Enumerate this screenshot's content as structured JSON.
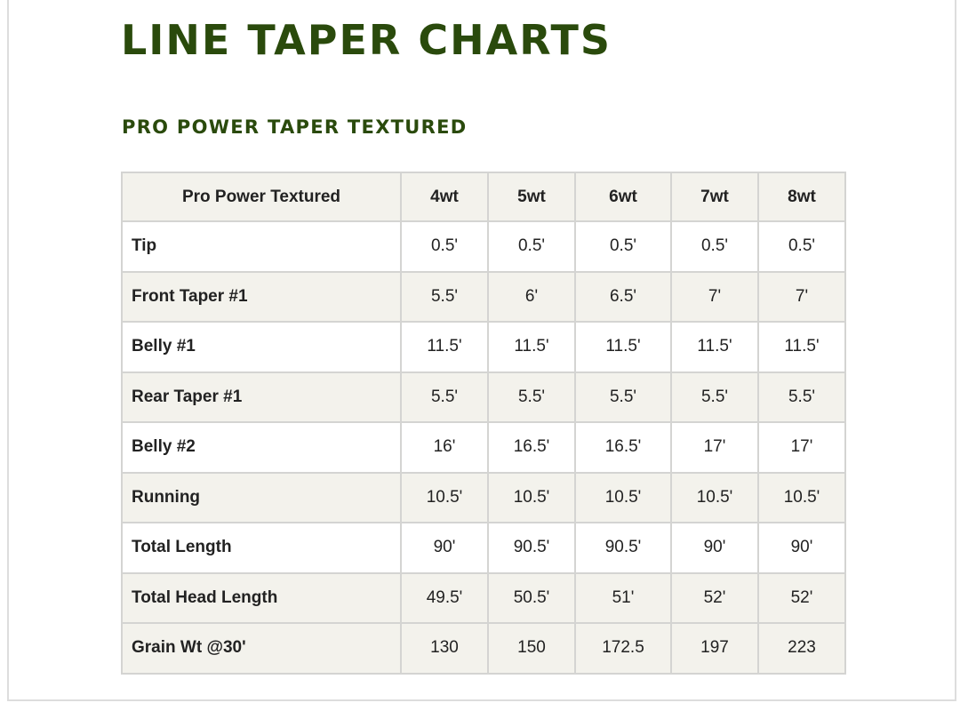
{
  "page": {
    "title": "LINE TAPER CHARTS",
    "section_title": "PRO POWER TAPER TEXTURED"
  },
  "table": {
    "headers": [
      "Pro Power Textured",
      "4wt",
      "5wt",
      "6wt",
      "7wt",
      "8wt"
    ],
    "rows": [
      {
        "label": "Tip",
        "values": [
          "0.5'",
          "0.5'",
          "0.5'",
          "0.5'",
          "0.5'"
        ]
      },
      {
        "label": "Front Taper #1",
        "values": [
          "5.5'",
          "6'",
          "6.5'",
          "7'",
          "7'"
        ]
      },
      {
        "label": "Belly #1",
        "values": [
          "11.5'",
          "11.5'",
          "11.5'",
          "11.5'",
          "11.5'"
        ]
      },
      {
        "label": "Rear Taper #1",
        "values": [
          "5.5'",
          "5.5'",
          "5.5'",
          "5.5'",
          "5.5'"
        ]
      },
      {
        "label": "Belly #2",
        "values": [
          "16'",
          "16.5'",
          "16.5'",
          "17'",
          "17'"
        ]
      },
      {
        "label": "Running",
        "values": [
          "10.5'",
          "10.5'",
          "10.5'",
          "10.5'",
          "10.5'"
        ]
      },
      {
        "label": "Total Length",
        "values": [
          "90'",
          "90.5'",
          "90.5'",
          "90'",
          "90'"
        ]
      },
      {
        "label": "Total Head Length",
        "values": [
          "49.5'",
          "50.5'",
          "51'",
          "52'",
          "52'"
        ]
      },
      {
        "label": "Grain Wt @30'",
        "values": [
          "130",
          "150",
          "172.5",
          "197",
          "223"
        ]
      }
    ]
  },
  "colors": {
    "heading": "#2a4a0c",
    "row_shade": "#f3f2ec",
    "border": "#d4d4d2"
  }
}
